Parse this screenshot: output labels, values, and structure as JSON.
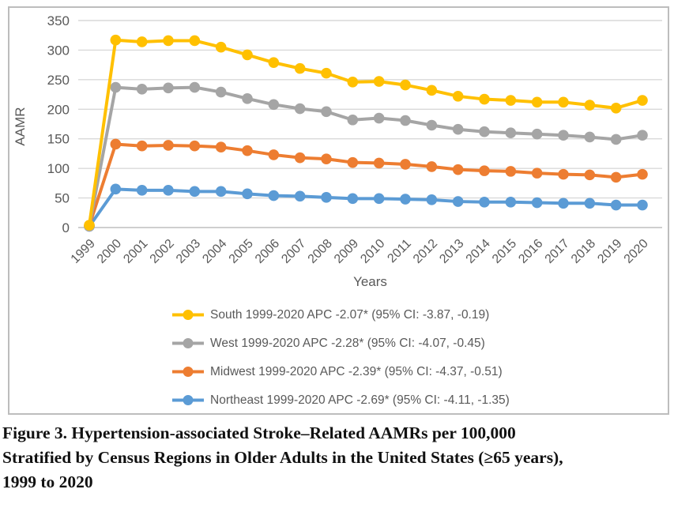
{
  "chart_data": {
    "type": "line",
    "title": "",
    "xlabel": "Years",
    "ylabel": "AAMR",
    "ylim": [
      0,
      350
    ],
    "ytick_step": 50,
    "grid": true,
    "legend_position": "bottom",
    "categories": [
      "1999",
      "2000",
      "2001",
      "2002",
      "2003",
      "2004",
      "2005",
      "2006",
      "2007",
      "2008",
      "2009",
      "2010",
      "2011",
      "2012",
      "2013",
      "2014",
      "2015",
      "2016",
      "2017",
      "2018",
      "2019",
      "2020"
    ],
    "series": [
      {
        "name": "South",
        "legend": "South 1999-2020 APC -2.07* (95% CI: -3.87, -0.19)",
        "color": "#FFC000",
        "values": [
          4,
          317,
          314,
          316,
          316,
          305,
          292,
          279,
          269,
          261,
          246,
          247,
          241,
          232,
          222,
          217,
          215,
          212,
          212,
          207,
          202,
          215
        ]
      },
      {
        "name": "West",
        "legend": "West 1999-2020 APC -2.28* (95% CI: -4.07, -0.45)",
        "color": "#A5A5A5",
        "values": [
          2,
          237,
          234,
          236,
          237,
          229,
          218,
          208,
          201,
          196,
          182,
          185,
          181,
          173,
          166,
          162,
          160,
          158,
          156,
          153,
          149,
          156
        ]
      },
      {
        "name": "Midwest",
        "legend": "Midwest 1999-2020 APC -2.39* (95% CI: -4.37, -0.51)",
        "color": "#ED7D31",
        "values": [
          3,
          141,
          138,
          139,
          138,
          136,
          130,
          123,
          118,
          116,
          110,
          109,
          107,
          103,
          98,
          96,
          95,
          92,
          90,
          89,
          85,
          90
        ]
      },
      {
        "name": "Northeast",
        "legend": "Northeast 1999-2020 APC -2.69* (95% CI: -4.11, -1.35)",
        "color": "#5B9BD5",
        "values": [
          2,
          65,
          63,
          63,
          61,
          61,
          57,
          54,
          53,
          51,
          49,
          49,
          48,
          47,
          44,
          43,
          43,
          42,
          41,
          41,
          38,
          38
        ]
      }
    ]
  },
  "colors": {
    "gridline": "#D9D9D9",
    "axis_line": "#BFBFBF",
    "axis_text": "#595959",
    "frame_border": "#BDBDBD"
  },
  "caption": {
    "lines": [
      "Figure 3. Hypertension-associated Stroke–Related AAMRs per 100,000",
      "Stratified by Census Regions in Older Adults in the United States (≥65 years),",
      "1999 to 2020"
    ]
  }
}
